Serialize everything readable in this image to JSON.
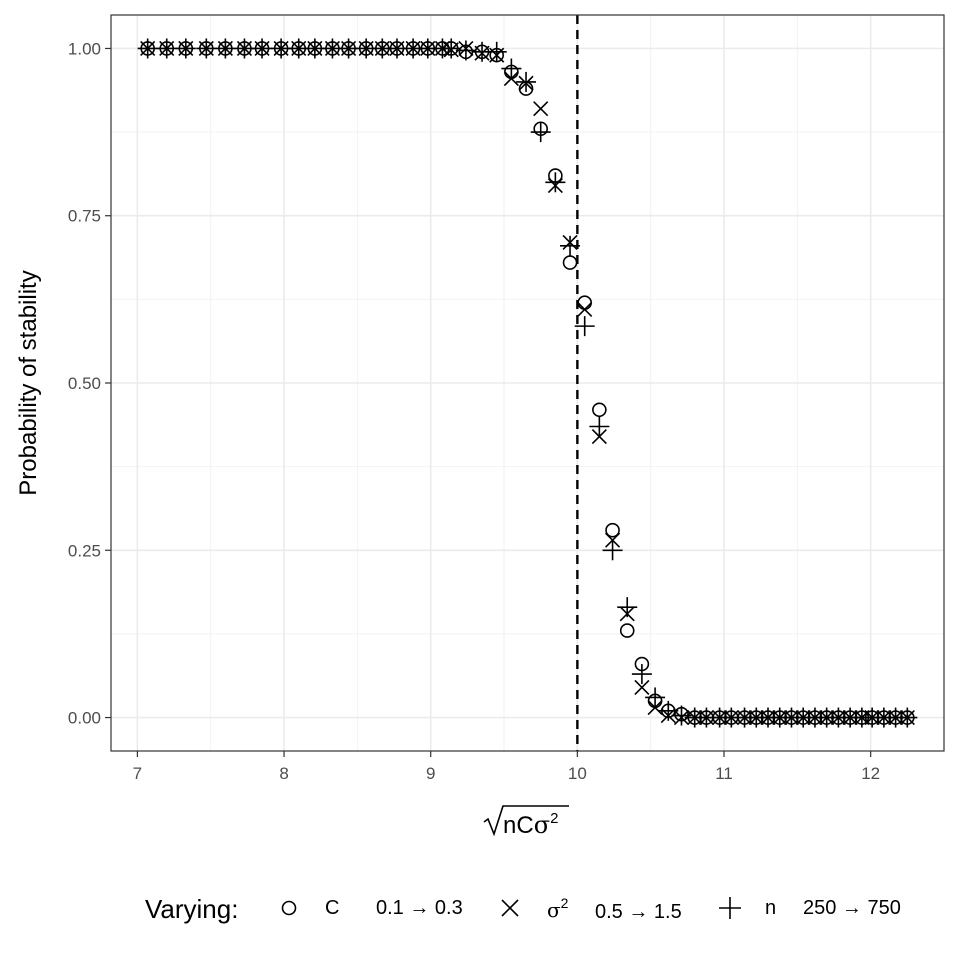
{
  "chart_data": {
    "type": "scatter",
    "title": "",
    "xlabel_radicand": "nC",
    "xlabel_symbol": "σ",
    "xlabel_exponent": "2",
    "ylabel": "Probability of stability",
    "xlim": [
      6.82,
      12.5
    ],
    "ylim": [
      -0.05,
      1.05
    ],
    "x_ticks": [
      7,
      8,
      9,
      10,
      11,
      12
    ],
    "x_tick_labels": [
      "7",
      "8",
      "9",
      "10",
      "11",
      "12"
    ],
    "y_ticks": [
      0,
      0.25,
      0.5,
      0.75,
      1.0
    ],
    "y_tick_labels": [
      "0.00",
      "0.25",
      "0.50",
      "0.75",
      "1.00"
    ],
    "grid": true,
    "reference_line": {
      "x": 10,
      "style": "dashed"
    },
    "legend": {
      "title": "Varying:",
      "position": "bottom",
      "entries": [
        {
          "shape": "circle",
          "name": "C",
          "range": "0.1 → 0.3"
        },
        {
          "shape": "cross",
          "name": "σ",
          "name_exponent": "2",
          "range": "0.5 → 1.5"
        },
        {
          "shape": "plus",
          "name": "n",
          "range": "250 → 750"
        }
      ]
    },
    "series": [
      {
        "shape": "circle",
        "points": [
          [
            7.07,
            1.0
          ],
          [
            7.2,
            1.0
          ],
          [
            7.33,
            1.0
          ],
          [
            7.47,
            1.0
          ],
          [
            7.6,
            1.0
          ],
          [
            7.73,
            1.0
          ],
          [
            7.85,
            1.0
          ],
          [
            7.98,
            1.0
          ],
          [
            8.1,
            1.0
          ],
          [
            8.21,
            1.0
          ],
          [
            8.33,
            1.0
          ],
          [
            8.44,
            1.0
          ],
          [
            8.56,
            1.0
          ],
          [
            8.67,
            1.0
          ],
          [
            8.77,
            1.0
          ],
          [
            8.88,
            1.0
          ],
          [
            8.98,
            1.0
          ],
          [
            9.08,
            1.0
          ],
          [
            9.14,
            1.0
          ],
          [
            9.24,
            0.995
          ],
          [
            9.35,
            0.995
          ],
          [
            9.45,
            0.99
          ],
          [
            9.55,
            0.965
          ],
          [
            9.65,
            0.94
          ],
          [
            9.75,
            0.88
          ],
          [
            9.85,
            0.81
          ],
          [
            9.95,
            0.68
          ],
          [
            10.05,
            0.62
          ],
          [
            10.15,
            0.46
          ],
          [
            10.24,
            0.28
          ],
          [
            10.34,
            0.13
          ],
          [
            10.44,
            0.08
          ],
          [
            10.53,
            0.025
          ],
          [
            10.62,
            0.01
          ],
          [
            10.71,
            0.005
          ],
          [
            10.8,
            0.0
          ],
          [
            10.88,
            0.0
          ],
          [
            10.97,
            0.0
          ],
          [
            11.05,
            0.0
          ],
          [
            11.14,
            0.0
          ],
          [
            11.22,
            0.0
          ],
          [
            11.3,
            0.0
          ],
          [
            11.38,
            0.0
          ],
          [
            11.46,
            0.0
          ],
          [
            11.54,
            0.0
          ],
          [
            11.62,
            0.0
          ],
          [
            11.7,
            0.0
          ],
          [
            11.78,
            0.0
          ],
          [
            11.86,
            0.0
          ],
          [
            11.94,
            0.0
          ],
          [
            12.01,
            0.0
          ],
          [
            12.09,
            0.0
          ],
          [
            12.17,
            0.0
          ],
          [
            12.25,
            0.0
          ]
        ]
      },
      {
        "shape": "cross",
        "points": [
          [
            7.07,
            1.0
          ],
          [
            7.2,
            1.0
          ],
          [
            7.33,
            1.0
          ],
          [
            7.47,
            1.0
          ],
          [
            7.6,
            1.0
          ],
          [
            7.73,
            1.0
          ],
          [
            7.85,
            1.0
          ],
          [
            7.98,
            1.0
          ],
          [
            8.1,
            1.0
          ],
          [
            8.21,
            1.0
          ],
          [
            8.33,
            1.0
          ],
          [
            8.44,
            1.0
          ],
          [
            8.56,
            1.0
          ],
          [
            8.67,
            1.0
          ],
          [
            8.77,
            1.0
          ],
          [
            8.88,
            1.0
          ],
          [
            8.98,
            1.0
          ],
          [
            9.08,
            1.0
          ],
          [
            9.14,
            0.998
          ],
          [
            9.24,
            1.0
          ],
          [
            9.35,
            0.993
          ],
          [
            9.45,
            0.99
          ],
          [
            9.55,
            0.955
          ],
          [
            9.65,
            0.948
          ],
          [
            9.75,
            0.91
          ],
          [
            9.85,
            0.795
          ],
          [
            9.95,
            0.71
          ],
          [
            10.05,
            0.61
          ],
          [
            10.15,
            0.42
          ],
          [
            10.24,
            0.265
          ],
          [
            10.34,
            0.155
          ],
          [
            10.44,
            0.045
          ],
          [
            10.53,
            0.015
          ],
          [
            10.62,
            0.003
          ],
          [
            10.71,
            0.0
          ],
          [
            10.8,
            0.0
          ],
          [
            10.88,
            0.0
          ],
          [
            10.97,
            0.0
          ],
          [
            11.05,
            0.0
          ],
          [
            11.14,
            0.0
          ],
          [
            11.22,
            0.0
          ],
          [
            11.3,
            0.0
          ],
          [
            11.38,
            0.0
          ],
          [
            11.46,
            0.0
          ],
          [
            11.54,
            0.0
          ],
          [
            11.62,
            0.0
          ],
          [
            11.7,
            0.0
          ],
          [
            11.78,
            0.0
          ],
          [
            11.86,
            0.0
          ],
          [
            11.94,
            0.0
          ],
          [
            12.01,
            0.0
          ],
          [
            12.09,
            0.0
          ],
          [
            12.17,
            0.0
          ],
          [
            12.25,
            0.0
          ]
        ]
      },
      {
        "shape": "plus",
        "points": [
          [
            7.07,
            1.0
          ],
          [
            7.2,
            1.0
          ],
          [
            7.33,
            1.0
          ],
          [
            7.47,
            1.0
          ],
          [
            7.6,
            1.0
          ],
          [
            7.73,
            1.0
          ],
          [
            7.85,
            1.0
          ],
          [
            7.98,
            1.0
          ],
          [
            8.1,
            1.0
          ],
          [
            8.21,
            1.0
          ],
          [
            8.33,
            1.0
          ],
          [
            8.44,
            1.0
          ],
          [
            8.56,
            1.0
          ],
          [
            8.67,
            1.0
          ],
          [
            8.77,
            1.0
          ],
          [
            8.88,
            1.0
          ],
          [
            8.98,
            1.0
          ],
          [
            9.08,
            1.0
          ],
          [
            9.14,
            1.0
          ],
          [
            9.24,
            0.997
          ],
          [
            9.35,
            0.995
          ],
          [
            9.45,
            0.995
          ],
          [
            9.55,
            0.97
          ],
          [
            9.65,
            0.95
          ],
          [
            9.75,
            0.875
          ],
          [
            9.85,
            0.8
          ],
          [
            9.95,
            0.705
          ],
          [
            10.05,
            0.585
          ],
          [
            10.15,
            0.435
          ],
          [
            10.24,
            0.25
          ],
          [
            10.34,
            0.165
          ],
          [
            10.44,
            0.065
          ],
          [
            10.53,
            0.03
          ],
          [
            10.62,
            0.01
          ],
          [
            10.71,
            0.003
          ],
          [
            10.8,
            0.0
          ],
          [
            10.88,
            0.0
          ],
          [
            10.97,
            0.0
          ],
          [
            11.05,
            0.0
          ],
          [
            11.14,
            0.0
          ],
          [
            11.22,
            0.0
          ],
          [
            11.3,
            0.0
          ],
          [
            11.38,
            0.0
          ],
          [
            11.46,
            0.0
          ],
          [
            11.54,
            0.0
          ],
          [
            11.62,
            0.0
          ],
          [
            11.7,
            0.0
          ],
          [
            11.78,
            0.0
          ],
          [
            11.86,
            0.0
          ],
          [
            11.94,
            0.0
          ],
          [
            12.01,
            0.0
          ],
          [
            12.09,
            0.0
          ],
          [
            12.17,
            0.0
          ],
          [
            12.25,
            0.0
          ]
        ]
      }
    ]
  }
}
